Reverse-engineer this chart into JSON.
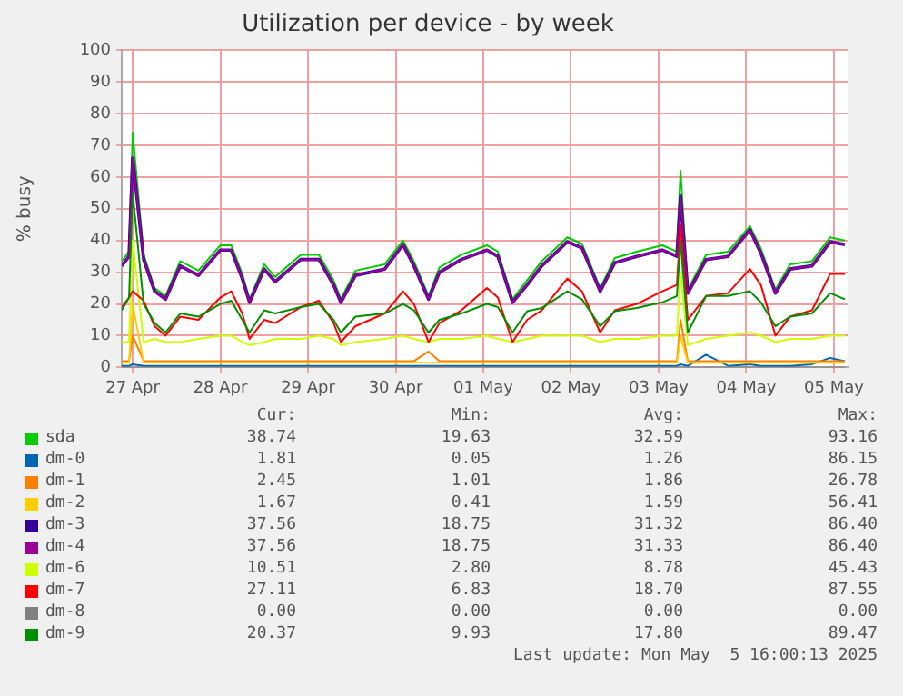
{
  "chart_data": {
    "type": "line",
    "title": "Utilization per device - by week",
    "ylabel": "% busy",
    "x": [
      "2025-04-26T21:00",
      "2025-04-26T23:00",
      "2025-04-27T00:00",
      "2025-04-27T03:00",
      "2025-04-27T06:00",
      "2025-04-27T09:00",
      "2025-04-27T13:00",
      "2025-04-27T18:00",
      "2025-04-28T00:00",
      "2025-04-28T03:00",
      "2025-04-28T06:00",
      "2025-04-28T08:00",
      "2025-04-28T12:00",
      "2025-04-28T15:00",
      "2025-04-28T22:00",
      "2025-04-29T03:00",
      "2025-04-29T07:00",
      "2025-04-29T09:00",
      "2025-04-29T13:00",
      "2025-04-29T21:00",
      "2025-04-30T02:00",
      "2025-04-30T05:00",
      "2025-04-30T09:00",
      "2025-04-30T12:00",
      "2025-04-30T18:00",
      "2025-05-01T01:00",
      "2025-05-01T04:00",
      "2025-05-01T08:00",
      "2025-05-01T12:00",
      "2025-05-01T16:00",
      "2025-05-01T23:00",
      "2025-05-02T03:00",
      "2025-05-02T08:00",
      "2025-05-02T12:00",
      "2025-05-02T18:00",
      "2025-05-03T01:00",
      "2025-05-03T05:00",
      "2025-05-03T06:00",
      "2025-05-03T08:00",
      "2025-05-03T13:00",
      "2025-05-03T19:00",
      "2025-05-04T01:00",
      "2025-05-04T04:00",
      "2025-05-04T08:00",
      "2025-05-04T12:00",
      "2025-05-04T18:00",
      "2025-05-04T23:00",
      "2025-05-05T03:00"
    ],
    "xlim": [
      "2025-04-26T21:00",
      "2025-05-05T04:00"
    ],
    "xticks": [
      {
        "value": "2025-04-27",
        "label": "27 Apr"
      },
      {
        "value": "2025-04-28",
        "label": "28 Apr"
      },
      {
        "value": "2025-04-29",
        "label": "29 Apr"
      },
      {
        "value": "2025-04-30",
        "label": "30 Apr"
      },
      {
        "value": "2025-05-01",
        "label": "01 May"
      },
      {
        "value": "2025-05-02",
        "label": "02 May"
      },
      {
        "value": "2025-05-03",
        "label": "03 May"
      },
      {
        "value": "2025-05-04",
        "label": "04 May"
      },
      {
        "value": "2025-05-05",
        "label": "05 May"
      }
    ],
    "ylim": [
      0,
      100
    ],
    "yticks": [
      0,
      10,
      20,
      30,
      40,
      50,
      60,
      70,
      80,
      90,
      100
    ],
    "grid": true,
    "legend": "bottom",
    "marker": "none",
    "line_style": "solid",
    "series": [
      {
        "name": "sda",
        "color": "#00cc00",
        "values": [
          33.5,
          36.5,
          74,
          35.5,
          25,
          22.5,
          33.5,
          30.5,
          38.5,
          38.5,
          29.5,
          21.5,
          32.5,
          28.5,
          35.5,
          35.5,
          27.5,
          21.5,
          30.5,
          32.5,
          40,
          33.5,
          22.5,
          31.5,
          35.5,
          38.5,
          36.5,
          21.5,
          27.5,
          33.5,
          41,
          39,
          25,
          34.5,
          36.5,
          38.5,
          36.5,
          62,
          24.5,
          35.5,
          36.5,
          44.5,
          37.5,
          24.5,
          32.5,
          33.5,
          41,
          40
        ]
      },
      {
        "name": "dm-0",
        "color": "#0066b3",
        "values": [
          0.5,
          0.5,
          1,
          0.5,
          0.5,
          0.5,
          0.5,
          0.5,
          0.5,
          0.5,
          0.5,
          0.5,
          0.5,
          0.5,
          0.5,
          0.5,
          0.5,
          0.5,
          0.5,
          0.5,
          0.5,
          0.5,
          0.5,
          0.5,
          0.5,
          0.5,
          0.5,
          0.5,
          0.5,
          0.5,
          0.5,
          0.5,
          0.5,
          0.5,
          0.5,
          0.5,
          0.5,
          1,
          0.5,
          4,
          0.5,
          1,
          0.5,
          0.5,
          0.5,
          1,
          3,
          2
        ]
      },
      {
        "name": "dm-1",
        "color": "#ff8000",
        "values": [
          2,
          2,
          10,
          2,
          2,
          2,
          2,
          2,
          2,
          2,
          2,
          2,
          2,
          2,
          2,
          2,
          2,
          2,
          2,
          2,
          2,
          2,
          5,
          2,
          2,
          2,
          2,
          2,
          2,
          2,
          2,
          2,
          2,
          2,
          2,
          2,
          2,
          15,
          2,
          2,
          2,
          2,
          2,
          2,
          2,
          2,
          2,
          2
        ]
      },
      {
        "name": "dm-2",
        "color": "#ffcc00",
        "values": [
          1.5,
          1.5,
          20,
          1.5,
          1.5,
          1.5,
          1.5,
          1.5,
          1.5,
          1.5,
          1.5,
          1.5,
          1.5,
          1.5,
          1.5,
          1.5,
          1.5,
          1.5,
          1.5,
          1.5,
          1.5,
          1.5,
          1.5,
          1.5,
          1.5,
          1.5,
          1.5,
          1.5,
          1.5,
          1.5,
          1.5,
          1.5,
          1.5,
          1.5,
          1.5,
          1.5,
          1.5,
          10,
          1.5,
          1.5,
          1.5,
          1.5,
          1.5,
          1.5,
          1.5,
          1.5,
          1.5,
          1.5
        ]
      },
      {
        "name": "dm-3",
        "color": "#330099",
        "values": [
          32,
          35,
          66,
          34,
          24,
          21.5,
          32,
          29,
          37,
          37,
          28,
          20.5,
          31,
          27,
          34,
          34,
          26,
          20.5,
          29,
          31,
          38.7,
          32,
          21.5,
          30,
          34,
          37,
          35,
          20.5,
          26,
          32,
          39.6,
          37.7,
          24,
          33,
          35,
          37,
          35,
          54,
          23.4,
          34,
          35,
          43.4,
          36,
          23.4,
          31,
          32,
          39.6,
          38.7
        ]
      },
      {
        "name": "dm-4",
        "color": "#990099",
        "values": [
          32,
          35,
          66,
          34,
          24,
          21.5,
          32,
          29,
          37,
          37,
          28,
          20.5,
          31,
          27,
          34,
          34,
          26,
          20.5,
          29,
          31,
          38.7,
          32,
          21.5,
          30,
          34,
          37,
          35,
          20.5,
          26,
          32,
          39.6,
          37.7,
          24,
          33,
          35,
          37,
          35,
          54,
          23.4,
          34,
          35,
          43.4,
          36,
          23.4,
          31,
          32,
          39.6,
          38.7
        ]
      },
      {
        "name": "dm-6",
        "color": "#ccff00",
        "values": [
          8,
          8,
          40,
          8,
          9,
          8,
          8,
          9,
          10,
          10,
          8,
          7,
          8,
          9,
          9,
          10,
          9,
          7,
          8,
          9,
          10,
          9,
          8,
          9,
          9,
          10,
          9,
          8,
          9,
          10,
          10,
          10,
          8,
          9,
          9,
          10,
          10,
          30,
          7,
          9,
          10,
          11,
          10,
          8,
          9,
          9,
          10,
          10
        ]
      },
      {
        "name": "dm-7",
        "color": "#ff0000",
        "values": [
          19,
          22,
          24,
          21,
          13,
          10,
          16,
          15,
          22,
          24,
          17,
          9,
          15,
          14,
          19,
          21,
          14,
          8,
          13,
          17,
          24,
          20,
          8,
          14,
          18,
          25,
          22,
          8,
          15,
          18,
          28,
          24,
          11,
          18,
          20,
          24,
          26,
          45,
          15,
          22.5,
          23.4,
          31,
          26,
          10,
          16,
          18,
          29.5,
          29.5
        ]
      },
      {
        "name": "dm-8",
        "color": "#808080",
        "values": [
          0,
          0,
          0,
          0,
          0,
          0,
          0,
          0,
          0,
          0,
          0,
          0,
          0,
          0,
          0,
          0,
          0,
          0,
          0,
          0,
          0,
          0,
          0,
          0,
          0,
          0,
          0,
          0,
          0,
          0,
          0,
          0,
          0,
          0,
          0,
          0,
          0,
          0,
          0,
          0,
          0,
          0,
          0,
          0,
          0,
          0,
          0,
          0
        ]
      },
      {
        "name": "dm-9",
        "color": "#008f00",
        "values": [
          18,
          22,
          55,
          20,
          14,
          11,
          17,
          16,
          20,
          21,
          15,
          11,
          18,
          17,
          19,
          20,
          15,
          11,
          16,
          17,
          20,
          18,
          11,
          15,
          17,
          20,
          19,
          11,
          17.7,
          18.7,
          24,
          21.5,
          13,
          17.7,
          18.7,
          20.5,
          22.5,
          40,
          11,
          22.5,
          22.5,
          24,
          20.5,
          13,
          16,
          17,
          23.4,
          21.5
        ]
      }
    ],
    "annotations": [
      "Cur:",
      "Min:",
      "Avg:",
      "Max:",
      "38.74",
      "19.63",
      "32.59",
      "93.16",
      "1.81",
      "0.05",
      "1.26",
      "86.15",
      "2.45",
      "1.01",
      "1.86",
      "26.78",
      "1.67",
      "0.41",
      "1.59",
      "56.41",
      "37.56",
      "18.75",
      "31.32",
      "86.40",
      "37.56",
      "18.75",
      "31.33",
      "86.40",
      "10.51",
      "2.80",
      "8.78",
      "45.43",
      "27.11",
      "6.83",
      "18.70",
      "87.55",
      "0.00",
      "0.00",
      "0.00",
      "0.00",
      "20.37",
      "9.93",
      "17.80",
      "89.47",
      "Last update: Mon May  5 16:00:13 2025"
    ]
  }
}
